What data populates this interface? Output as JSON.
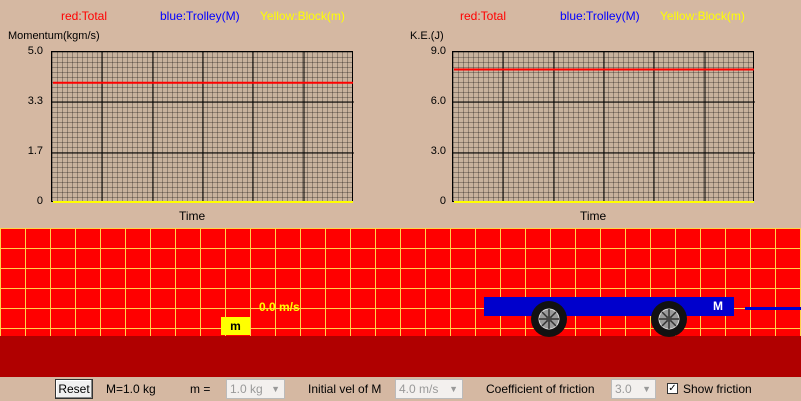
{
  "colors": {
    "total": "#ff0000",
    "trolley": "#0000ff",
    "block": "#ffff00",
    "background": "#d5b8a2",
    "scene_bg": "#ff0000",
    "floor": "#b00000"
  },
  "legend": {
    "total": "red:Total",
    "trolley": "blue:Trolley(M)",
    "block": "Yellow:Block(m)"
  },
  "momentum_chart": {
    "ylabel": "Momentum(kgm/s)",
    "xlabel": "Time",
    "ticks": [
      "5.0",
      "3.3",
      "1.7",
      "0"
    ]
  },
  "ke_chart": {
    "ylabel": "K.E.(J)",
    "xlabel": "Time",
    "ticks": [
      "9.0",
      "6.0",
      "3.0",
      "0"
    ]
  },
  "chart_data": [
    {
      "type": "line",
      "ylabel": "Momentum(kgm/s)",
      "xlabel": "Time",
      "ylim": [
        0,
        5.0
      ],
      "yticks": [
        0,
        1.7,
        3.3,
        5.0
      ],
      "series": [
        {
          "name": "red:Total",
          "color": "#ff0000",
          "x": [
            0,
            1
          ],
          "y": [
            4.0,
            4.0
          ]
        },
        {
          "name": "Yellow:Block(m)",
          "color": "#ffff00",
          "x": [
            0,
            1
          ],
          "y": [
            0,
            0
          ]
        }
      ]
    },
    {
      "type": "line",
      "ylabel": "K.E.(J)",
      "xlabel": "Time",
      "ylim": [
        0,
        9.0
      ],
      "yticks": [
        0,
        3.0,
        6.0,
        9.0
      ],
      "series": [
        {
          "name": "red:Total",
          "color": "#ff0000",
          "x": [
            0,
            1
          ],
          "y": [
            8.0,
            8.0
          ]
        },
        {
          "name": "Yellow:Block(m)",
          "color": "#ffff00",
          "x": [
            0,
            1
          ],
          "y": [
            0,
            0
          ]
        }
      ]
    }
  ],
  "scene": {
    "block_label": "m",
    "block_velocity": "0.0 m/s",
    "trolley_label": "M"
  },
  "controls": {
    "reset_label": "Reset",
    "trolley_mass": "M=1.0 kg",
    "block_mass_label": "m =",
    "block_mass_value": "1.0 kg",
    "initial_vel_label": "Initial vel of M",
    "initial_vel_value": "4.0 m/s",
    "friction_label": "Coefficient of friction",
    "friction_value": "3.0",
    "show_friction_label": "Show friction",
    "show_friction_checked": true
  }
}
